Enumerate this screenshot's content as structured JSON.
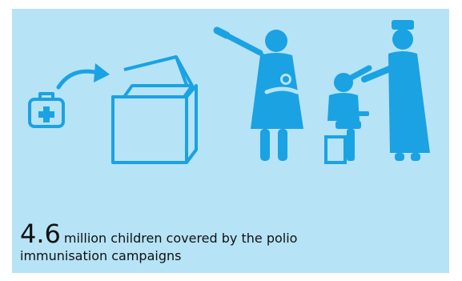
{
  "panel": {
    "background_color": "#b6e3f6",
    "icon_color": "#1aa2e3",
    "icons": [
      "medical-kit-icon",
      "arrow-icon",
      "open-box-icon",
      "mother-with-baby-icon",
      "vaccine-dropper-icon",
      "seated-child-icon",
      "nurse-icon"
    ]
  },
  "stat": {
    "value": "4.6",
    "line1": "million children covered by the polio",
    "line2": "immunisation campaigns"
  }
}
